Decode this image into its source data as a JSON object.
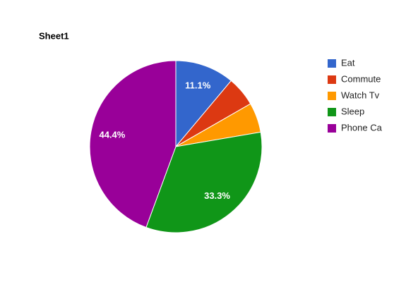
{
  "chart_data": {
    "type": "pie",
    "title": "Sheet1",
    "categories": [
      "Eat",
      "Commute",
      "Watch Tv",
      "Sleep",
      "Phone Ca"
    ],
    "values": [
      11.1,
      5.6,
      5.6,
      33.3,
      44.4
    ],
    "value_labels": [
      "11.1%",
      null,
      null,
      "33.3%",
      "44.4%"
    ],
    "colors": [
      "#3366cc",
      "#dc3912",
      "#ff9900",
      "#109618",
      "#990099"
    ],
    "legend": "right"
  }
}
